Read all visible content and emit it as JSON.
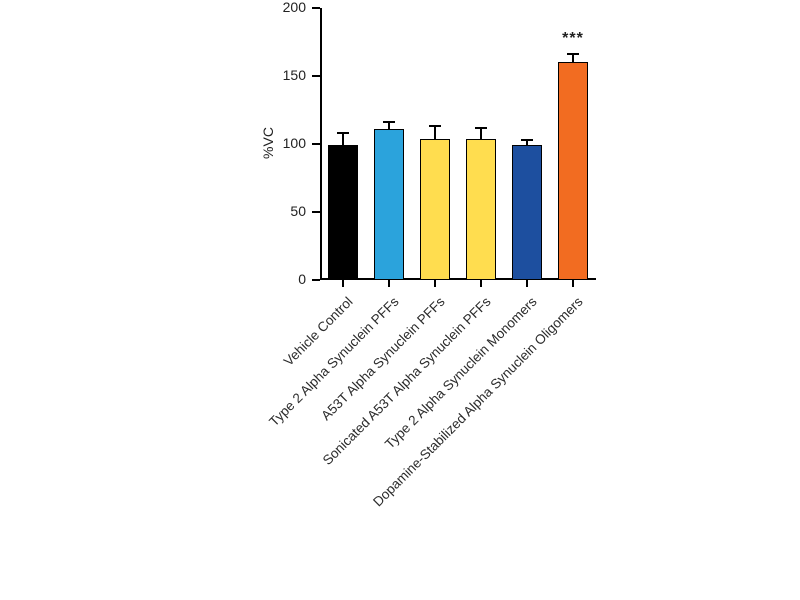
{
  "chart_data": {
    "type": "bar",
    "title": "",
    "xlabel": "",
    "ylabel": "%VC",
    "ylim": [
      0,
      200
    ],
    "yticks": [
      0,
      50,
      100,
      150,
      200
    ],
    "grid": false,
    "legend": null,
    "categories": [
      "Vehicle Control",
      "Type 2 Alpha Synuclein PFFs",
      "A53T Alpha Synuclein PFFs",
      "Sonicated A53T Alpha Synuclein PFFs",
      "Type 2 Alpha Synuclein Monomers",
      "Dopamine-Stabilized Alpha Synuclein Oligomers"
    ],
    "values": [
      99,
      111,
      104,
      104,
      99,
      160
    ],
    "errors": [
      9,
      5,
      9,
      8,
      4,
      6
    ],
    "bar_colors": [
      "#000000",
      "#2BA3DC",
      "#FFDD4F",
      "#FFDD4F",
      "#1D4F9F",
      "#F26C21"
    ],
    "bar_patterns": [
      "solid",
      "solid",
      "solid",
      "dots",
      "solid",
      "solid"
    ],
    "annotations": [
      {
        "bar_index": 5,
        "text": "***"
      }
    ]
  }
}
